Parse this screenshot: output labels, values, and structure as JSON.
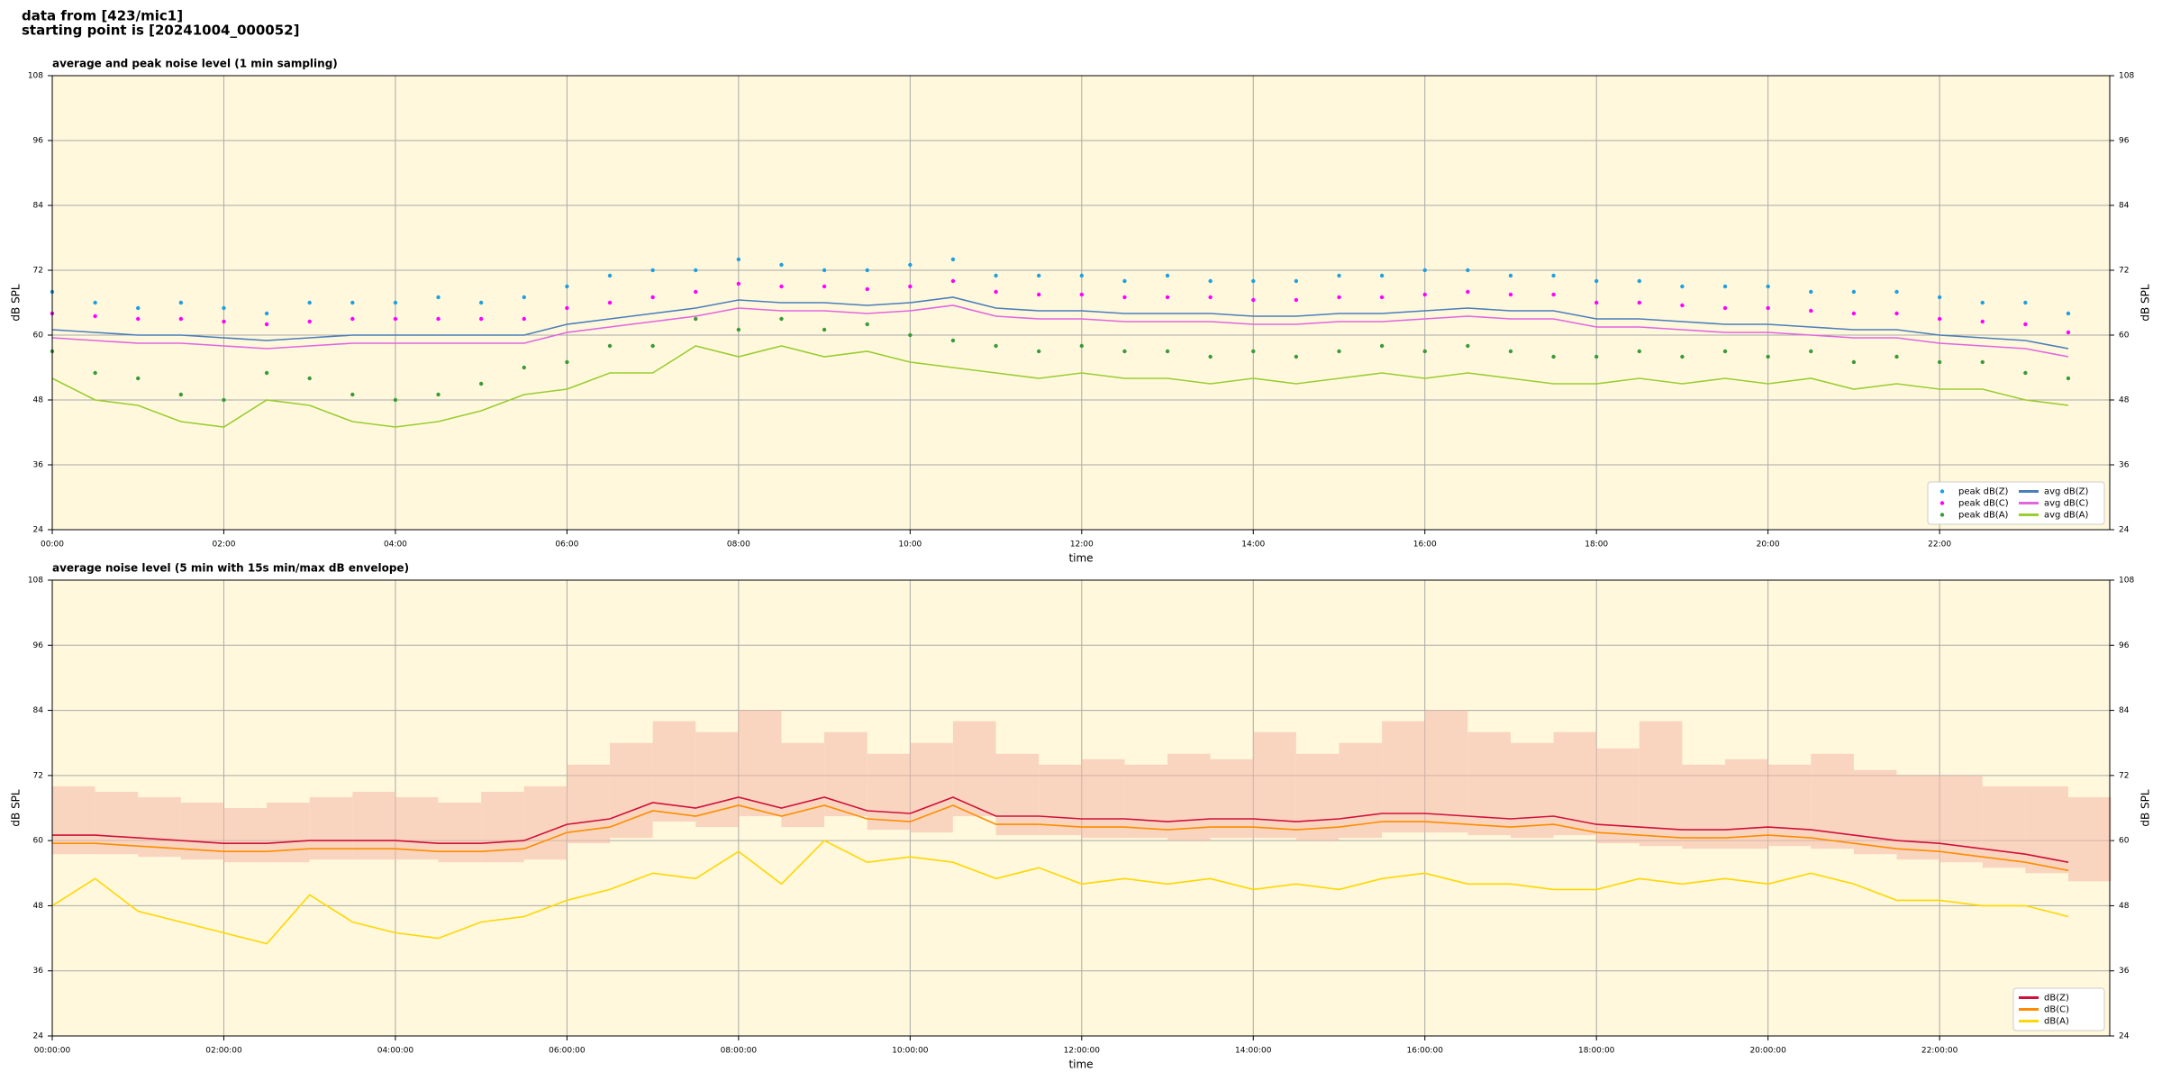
{
  "title": [
    "data from [423/mic1]",
    "starting point is [20241004_000052]"
  ],
  "chart_data": [
    {
      "type": "line",
      "title": "average and peak noise level (1 min sampling)",
      "xlabel": "time",
      "ylabel": "dB SPL",
      "xlim": [
        "00:00",
        "23:59"
      ],
      "ylim": [
        24,
        108
      ],
      "yticks": [
        24,
        36,
        48,
        60,
        72,
        84,
        96,
        108
      ],
      "xticks": [
        "00:00",
        "02:00",
        "04:00",
        "06:00",
        "08:00",
        "10:00",
        "12:00",
        "14:00",
        "16:00",
        "18:00",
        "20:00",
        "22:00"
      ],
      "grid": true,
      "legend": "lower right",
      "legend_columns": 2,
      "x": [
        "00:00",
        "00:30",
        "01:00",
        "01:30",
        "02:00",
        "02:30",
        "03:00",
        "03:30",
        "04:00",
        "04:30",
        "05:00",
        "05:30",
        "06:00",
        "06:30",
        "07:00",
        "07:30",
        "08:00",
        "08:30",
        "09:00",
        "09:30",
        "10:00",
        "10:30",
        "11:00",
        "11:30",
        "12:00",
        "12:30",
        "13:00",
        "13:30",
        "14:00",
        "14:30",
        "15:00",
        "15:30",
        "16:00",
        "16:30",
        "17:00",
        "17:30",
        "18:00",
        "18:30",
        "19:00",
        "19:30",
        "20:00",
        "20:30",
        "21:00",
        "21:30",
        "22:00",
        "22:30",
        "23:00",
        "23:30"
      ],
      "series": [
        {
          "name": "peak dB(Z)",
          "kind": "scatter",
          "color": "#1f9fe0",
          "values": [
            68,
            66,
            65,
            66,
            65,
            64,
            66,
            66,
            66,
            67,
            66,
            67,
            69,
            71,
            72,
            72,
            74,
            73,
            72,
            72,
            73,
            74,
            71,
            71,
            71,
            70,
            71,
            70,
            70,
            70,
            71,
            71,
            72,
            72,
            71,
            71,
            70,
            70,
            69,
            69,
            69,
            68,
            68,
            68,
            67,
            66,
            66,
            64
          ]
        },
        {
          "name": "peak dB(C)",
          "kind": "scatter",
          "color": "#ff00ff",
          "values": [
            64,
            63.5,
            63,
            63,
            62.5,
            62,
            62.5,
            63,
            63,
            63,
            63,
            63,
            65,
            66,
            67,
            68,
            69.5,
            69,
            69,
            68.5,
            69,
            70,
            68,
            67.5,
            67.5,
            67,
            67,
            67,
            66.5,
            66.5,
            67,
            67,
            67.5,
            68,
            67.5,
            67.5,
            66,
            66,
            65.5,
            65,
            65,
            64.5,
            64,
            64,
            63,
            62.5,
            62,
            60.5
          ]
        },
        {
          "name": "peak dB(A)",
          "kind": "scatter",
          "color": "#3a9a3a",
          "values": [
            57,
            53,
            52,
            49,
            48,
            53,
            52,
            49,
            48,
            49,
            51,
            54,
            55,
            58,
            58,
            63,
            61,
            63,
            61,
            62,
            60,
            59,
            58,
            57,
            58,
            57,
            57,
            56,
            57,
            56,
            57,
            58,
            57,
            58,
            57,
            56,
            56,
            57,
            56,
            57,
            56,
            57,
            55,
            56,
            55,
            55,
            53,
            52
          ]
        },
        {
          "name": "avg dB(Z)",
          "kind": "line",
          "color": "#4a7ebb",
          "values": [
            61,
            60.5,
            60,
            60,
            59.5,
            59,
            59.5,
            60,
            60,
            60,
            60,
            60,
            62,
            63,
            64,
            65,
            66.5,
            66,
            66,
            65.5,
            66,
            67,
            65,
            64.5,
            64.5,
            64,
            64,
            64,
            63.5,
            63.5,
            64,
            64,
            64.5,
            65,
            64.5,
            64.5,
            63,
            63,
            62.5,
            62,
            62,
            61.5,
            61,
            61,
            60,
            59.5,
            59,
            57.5
          ]
        },
        {
          "name": "avg dB(C)",
          "kind": "line",
          "color": "#e066e0",
          "values": [
            59.5,
            59,
            58.5,
            58.5,
            58,
            57.5,
            58,
            58.5,
            58.5,
            58.5,
            58.5,
            58.5,
            60.5,
            61.5,
            62.5,
            63.5,
            65,
            64.5,
            64.5,
            64,
            64.5,
            65.5,
            63.5,
            63,
            63,
            62.5,
            62.5,
            62.5,
            62,
            62,
            62.5,
            62.5,
            63,
            63.5,
            63,
            63,
            61.5,
            61.5,
            61,
            60.5,
            60.5,
            60,
            59.5,
            59.5,
            58.5,
            58,
            57.5,
            56
          ]
        },
        {
          "name": "avg dB(A)",
          "kind": "line",
          "color": "#9acd32",
          "values": [
            52,
            48,
            47,
            44,
            43,
            48,
            47,
            44,
            43,
            44,
            46,
            49,
            50,
            53,
            53,
            58,
            56,
            58,
            56,
            57,
            55,
            54,
            53,
            52,
            53,
            52,
            52,
            51,
            52,
            51,
            52,
            53,
            52,
            53,
            52,
            51,
            51,
            52,
            51,
            52,
            51,
            52,
            50,
            51,
            50,
            50,
            48,
            47
          ]
        }
      ]
    },
    {
      "type": "line",
      "title": "average noise level (5 min with 15s min/max dB envelope)",
      "xlabel": "time",
      "ylabel": "dB SPL",
      "xlim": [
        "00:00:00",
        "23:59:00"
      ],
      "ylim": [
        24,
        108
      ],
      "yticks": [
        24,
        36,
        48,
        60,
        72,
        84,
        96,
        108
      ],
      "xticks": [
        "00:00:00",
        "02:00:00",
        "04:00:00",
        "06:00:00",
        "08:00:00",
        "10:00:00",
        "12:00:00",
        "14:00:00",
        "16:00:00",
        "18:00:00",
        "20:00:00",
        "22:00:00"
      ],
      "grid": true,
      "legend": "lower right",
      "legend_columns": 1,
      "x": [
        "00:00",
        "00:30",
        "01:00",
        "01:30",
        "02:00",
        "02:30",
        "03:00",
        "03:30",
        "04:00",
        "04:30",
        "05:00",
        "05:30",
        "06:00",
        "06:30",
        "07:00",
        "07:30",
        "08:00",
        "08:30",
        "09:00",
        "09:30",
        "10:00",
        "10:30",
        "11:00",
        "11:30",
        "12:00",
        "12:30",
        "13:00",
        "13:30",
        "14:00",
        "14:30",
        "15:00",
        "15:30",
        "16:00",
        "16:30",
        "17:00",
        "17:30",
        "18:00",
        "18:30",
        "19:00",
        "19:30",
        "20:00",
        "20:30",
        "21:00",
        "21:30",
        "22:00",
        "22:30",
        "23:00",
        "23:30"
      ],
      "envelope": {
        "color": "#f4b8a8",
        "low": [
          57.5,
          57.5,
          57,
          56.5,
          56,
          56,
          56.5,
          56.5,
          56.5,
          56,
          56,
          56.5,
          59.5,
          60.5,
          63.5,
          62.5,
          64.5,
          62.5,
          64.5,
          62,
          61.5,
          64.5,
          61,
          61,
          60.5,
          60.5,
          60,
          60.5,
          60.5,
          60,
          60.5,
          61.5,
          61.5,
          61,
          60.5,
          61,
          59.5,
          59,
          58.5,
          58.5,
          59,
          58.5,
          57.5,
          56.5,
          56,
          55,
          54,
          52.5
        ],
        "high": [
          70,
          69,
          68,
          67,
          66,
          67,
          68,
          69,
          68,
          67,
          69,
          70,
          74,
          78,
          82,
          80,
          84,
          78,
          80,
          76,
          78,
          82,
          76,
          74,
          75,
          74,
          76,
          75,
          80,
          76,
          78,
          82,
          84,
          80,
          78,
          80,
          77,
          82,
          74,
          75,
          74,
          76,
          73,
          72,
          72,
          70,
          70,
          68
        ]
      },
      "series": [
        {
          "name": "dB(Z)",
          "kind": "line",
          "color": "#d0103a",
          "values": [
            61,
            61,
            60.5,
            60,
            59.5,
            59.5,
            60,
            60,
            60,
            59.5,
            59.5,
            60,
            63,
            64,
            67,
            66,
            68,
            66,
            68,
            65.5,
            65,
            68,
            64.5,
            64.5,
            64,
            64,
            63.5,
            64,
            64,
            63.5,
            64,
            65,
            65,
            64.5,
            64,
            64.5,
            63,
            62.5,
            62,
            62,
            62.5,
            62,
            61,
            60,
            59.5,
            58.5,
            57.5,
            56
          ]
        },
        {
          "name": "dB(C)",
          "kind": "line",
          "color": "#ff8c00",
          "values": [
            59.5,
            59.5,
            59,
            58.5,
            58,
            58,
            58.5,
            58.5,
            58.5,
            58,
            58,
            58.5,
            61.5,
            62.5,
            65.5,
            64.5,
            66.5,
            64.5,
            66.5,
            64,
            63.5,
            66.5,
            63,
            63,
            62.5,
            62.5,
            62,
            62.5,
            62.5,
            62,
            62.5,
            63.5,
            63.5,
            63,
            62.5,
            63,
            61.5,
            61,
            60.5,
            60.5,
            61,
            60.5,
            59.5,
            58.5,
            58,
            57,
            56,
            54.5
          ]
        },
        {
          "name": "dB(A)",
          "kind": "line",
          "color": "#ffd700",
          "values": [
            48,
            53,
            47,
            45,
            43,
            41,
            50,
            45,
            43,
            42,
            45,
            46,
            49,
            51,
            54,
            53,
            58,
            52,
            60,
            56,
            57,
            56,
            53,
            55,
            52,
            53,
            52,
            53,
            51,
            52,
            51,
            53,
            54,
            52,
            52,
            51,
            51,
            53,
            52,
            53,
            52,
            54,
            52,
            49,
            49,
            48,
            48,
            46
          ]
        }
      ]
    }
  ]
}
